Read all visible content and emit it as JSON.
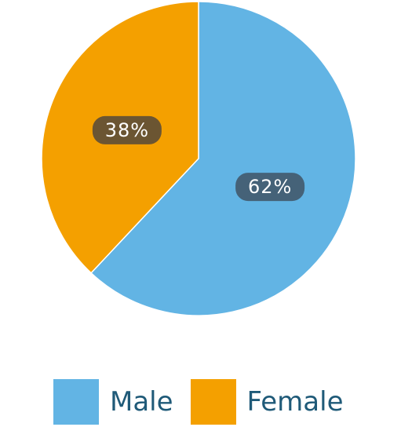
{
  "chart_data": {
    "type": "pie",
    "categories": [
      "Male",
      "Female"
    ],
    "values": [
      62,
      38
    ],
    "data_labels": [
      "62%",
      "38%"
    ],
    "colors": [
      "#62b4e4",
      "#f4a000"
    ],
    "label_bg_colors": [
      "#456278",
      "#6b5532"
    ],
    "legend_text_color": "#1f5a78",
    "legend_placement": "bottom"
  }
}
